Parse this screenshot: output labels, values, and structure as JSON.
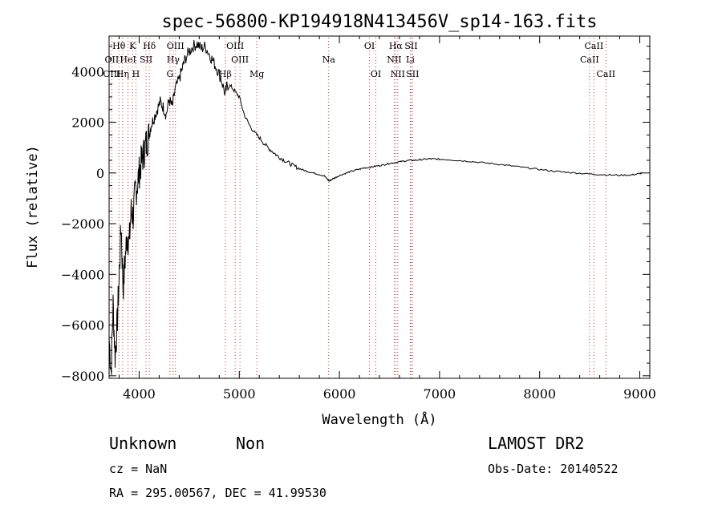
{
  "chart_data": {
    "type": "line",
    "title": "spec-56800-KP194918N413456V_sp14-163.fits",
    "xlabel": "Wavelength (Å)",
    "ylabel": "Flux (relative)",
    "xlim": [
      3700,
      9100
    ],
    "ylim": [
      -8100,
      5400
    ],
    "x_ticks": [
      4000,
      5000,
      6000,
      7000,
      8000,
      9000
    ],
    "x_tick_labels": [
      "4000",
      "5000",
      "6000",
      "7000",
      "8000",
      "9000"
    ],
    "y_ticks": [
      -8000,
      -6000,
      -4000,
      -2000,
      0,
      2000,
      4000
    ],
    "y_tick_labels": [
      "−8000",
      "−6000",
      "−4000",
      "−2000",
      "0",
      "2000",
      "4000"
    ],
    "grid": false,
    "series": [
      {
        "points": [
          [
            3700,
            -6500
          ],
          [
            3720,
            -7800
          ],
          [
            3740,
            -5200
          ],
          [
            3760,
            -7200
          ],
          [
            3780,
            -6000
          ],
          [
            3800,
            -4200
          ],
          [
            3820,
            -2000
          ],
          [
            3840,
            -4600
          ],
          [
            3860,
            -3400
          ],
          [
            3880,
            -2400
          ],
          [
            3900,
            -2800
          ],
          [
            3920,
            -1500
          ],
          [
            3940,
            -1700
          ],
          [
            3960,
            -800
          ],
          [
            3980,
            -500
          ],
          [
            4000,
            0
          ],
          [
            4020,
            400
          ],
          [
            4040,
            700
          ],
          [
            4060,
            1000
          ],
          [
            4080,
            1300
          ],
          [
            4100,
            1500
          ],
          [
            4120,
            1900
          ],
          [
            4150,
            2200
          ],
          [
            4180,
            2500
          ],
          [
            4210,
            2800
          ],
          [
            4240,
            2600
          ],
          [
            4270,
            2300
          ],
          [
            4300,
            2900
          ],
          [
            4330,
            2600
          ],
          [
            4360,
            3300
          ],
          [
            4400,
            3700
          ],
          [
            4430,
            4100
          ],
          [
            4460,
            4500
          ],
          [
            4500,
            4800
          ],
          [
            4540,
            5000
          ],
          [
            4580,
            5100
          ],
          [
            4620,
            4900
          ],
          [
            4660,
            5000
          ],
          [
            4700,
            4700
          ],
          [
            4740,
            4400
          ],
          [
            4780,
            4100
          ],
          [
            4820,
            3700
          ],
          [
            4860,
            3100
          ],
          [
            4880,
            3500
          ],
          [
            4920,
            3400
          ],
          [
            4960,
            3200
          ],
          [
            5000,
            3000
          ],
          [
            5050,
            2300
          ],
          [
            5100,
            1900
          ],
          [
            5150,
            1600
          ],
          [
            5200,
            1400
          ],
          [
            5250,
            1150
          ],
          [
            5300,
            950
          ],
          [
            5350,
            780
          ],
          [
            5400,
            620
          ],
          [
            5450,
            500
          ],
          [
            5500,
            380
          ],
          [
            5550,
            270
          ],
          [
            5600,
            170
          ],
          [
            5650,
            100
          ],
          [
            5700,
            40
          ],
          [
            5750,
            -10
          ],
          [
            5800,
            -60
          ],
          [
            5850,
            -120
          ],
          [
            5880,
            -250
          ],
          [
            5900,
            -320
          ],
          [
            5930,
            -240
          ],
          [
            5960,
            -180
          ],
          [
            6000,
            -100
          ],
          [
            6050,
            -30
          ],
          [
            6100,
            40
          ],
          [
            6150,
            100
          ],
          [
            6200,
            150
          ],
          [
            6250,
            200
          ],
          [
            6300,
            220
          ],
          [
            6350,
            260
          ],
          [
            6400,
            290
          ],
          [
            6450,
            330
          ],
          [
            6500,
            380
          ],
          [
            6550,
            410
          ],
          [
            6600,
            440
          ],
          [
            6650,
            470
          ],
          [
            6700,
            500
          ],
          [
            6750,
            500
          ],
          [
            6800,
            520
          ],
          [
            6850,
            540
          ],
          [
            6900,
            560
          ],
          [
            6950,
            550
          ],
          [
            7000,
            540
          ],
          [
            7100,
            520
          ],
          [
            7200,
            490
          ],
          [
            7300,
            460
          ],
          [
            7400,
            420
          ],
          [
            7500,
            380
          ],
          [
            7600,
            340
          ],
          [
            7700,
            290
          ],
          [
            7800,
            240
          ],
          [
            7900,
            190
          ],
          [
            8000,
            140
          ],
          [
            8100,
            90
          ],
          [
            8200,
            50
          ],
          [
            8300,
            20
          ],
          [
            8400,
            -10
          ],
          [
            8500,
            -40
          ],
          [
            8600,
            -60
          ],
          [
            8700,
            -80
          ],
          [
            8800,
            -90
          ],
          [
            8900,
            -80
          ],
          [
            8950,
            -60
          ],
          [
            9000,
            -20
          ],
          [
            9030,
            0
          ]
        ]
      }
    ],
    "spectral_lines": [
      {
        "label": "Hθ",
        "x": 3798,
        "row": 0
      },
      {
        "label": "K",
        "x": 3934,
        "row": 0
      },
      {
        "label": "Hδ",
        "x": 4102,
        "row": 0
      },
      {
        "label": "OIII",
        "x": 4363,
        "row": 0
      },
      {
        "label": "OIII",
        "x": 4959,
        "row": 0
      },
      {
        "label": "OI",
        "x": 6300,
        "row": 0
      },
      {
        "label": "Hα",
        "x": 6563,
        "row": 0
      },
      {
        "label": "SII",
        "x": 6716,
        "row": 0
      },
      {
        "label": "CaII",
        "x": 8542,
        "row": 0
      },
      {
        "label": "OII",
        "x": 3727,
        "row": 1
      },
      {
        "label": "HeI",
        "x": 3889,
        "row": 1
      },
      {
        "label": "SII",
        "x": 4069,
        "row": 1
      },
      {
        "label": "Hγ",
        "x": 4340,
        "row": 1
      },
      {
        "label": "OIII",
        "x": 5007,
        "row": 1
      },
      {
        "label": "Na",
        "x": 5893,
        "row": 1
      },
      {
        "label": "NII",
        "x": 6548,
        "row": 1
      },
      {
        "label": "Li",
        "x": 6708,
        "row": 1
      },
      {
        "label": "CaII",
        "x": 8498,
        "row": 1
      },
      {
        "label": "OIII",
        "x": 3727,
        "row": 2
      },
      {
        "label": "Hη",
        "x": 3835,
        "row": 2
      },
      {
        "label": "H",
        "x": 3968,
        "row": 2
      },
      {
        "label": "G",
        "x": 4308,
        "row": 2
      },
      {
        "label": "Hβ",
        "x": 4861,
        "row": 2
      },
      {
        "label": "Mg",
        "x": 5175,
        "row": 2
      },
      {
        "label": "OI",
        "x": 6364,
        "row": 2
      },
      {
        "label": "NII",
        "x": 6583,
        "row": 2
      },
      {
        "label": "SII",
        "x": 6731,
        "row": 2
      },
      {
        "label": "CaII",
        "x": 8662,
        "row": 2
      }
    ],
    "line_label_color": "#000000",
    "marker_color": "#cc3333",
    "curve_color": "#000000"
  },
  "info": {
    "class": "Unknown",
    "subclass": "Non",
    "survey": "LAMOST DR2",
    "cz": "cz = NaN",
    "obs_date": "Obs-Date: 20140522",
    "radec": "RA = 295.00567, DEC =  41.99530"
  }
}
